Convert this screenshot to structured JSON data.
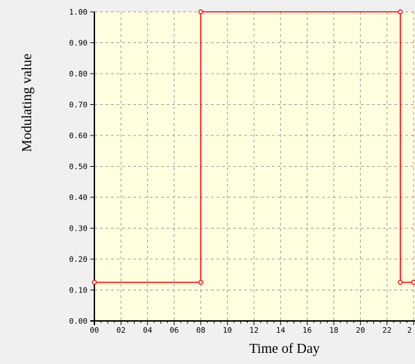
{
  "chart_data": {
    "type": "line",
    "title": "",
    "xlabel": "Time of Day",
    "ylabel": "Modulating value",
    "xlim": [
      0,
      24
    ],
    "ylim": [
      0.0,
      1.0
    ],
    "x_ticks": [
      "00",
      "02",
      "04",
      "06",
      "08",
      "10",
      "12",
      "14",
      "16",
      "18",
      "20",
      "22",
      "2"
    ],
    "y_ticks": [
      "0.00",
      "0.10",
      "0.20",
      "0.30",
      "0.40",
      "0.50",
      "0.60",
      "0.70",
      "0.80",
      "0.90",
      "1.00"
    ],
    "grid": true,
    "series": [
      {
        "x": [
          0,
          8,
          8,
          23,
          23,
          24
        ],
        "y": [
          0.125,
          0.125,
          1.0,
          1.0,
          0.125,
          0.125
        ]
      }
    ]
  },
  "colors": {
    "plot_background": "#ffffe0",
    "outer_background": "#f0f0f0",
    "series_line": "#ff0000",
    "grid": "#999999",
    "axis": "#000000"
  }
}
